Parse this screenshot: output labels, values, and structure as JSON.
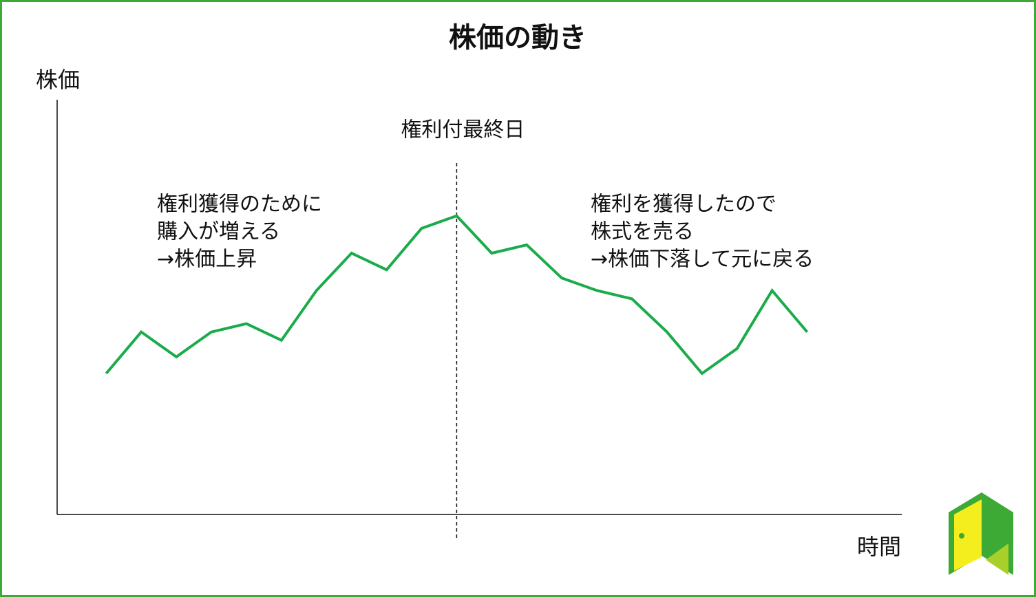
{
  "chart_data": {
    "type": "line",
    "title": "株価の動き",
    "y_label": "株価",
    "x_label": "時間",
    "x": [
      1,
      2,
      3,
      4,
      5,
      6,
      7,
      8,
      9,
      10,
      11,
      12,
      13,
      14,
      15,
      16,
      17,
      18,
      19,
      20,
      21
    ],
    "series": [
      {
        "color": "#1aab4a",
        "values": [
          34,
          44,
          38,
          44,
          46,
          42,
          54,
          63,
          59,
          69,
          72,
          63,
          65,
          57,
          54,
          52,
          44,
          34,
          40,
          54,
          44
        ]
      }
    ],
    "xlim": [
      -0.4,
      23.7
    ],
    "ylim": [
      0,
      100
    ],
    "event": {
      "x": 11,
      "label": "権利付最終日"
    },
    "notes": [
      [
        "権利獲得のために",
        "購入が増える",
        "→株価上昇"
      ],
      [
        "権利を獲得したので",
        "株式を売る",
        "→株価下落して元に戻る"
      ]
    ]
  }
}
